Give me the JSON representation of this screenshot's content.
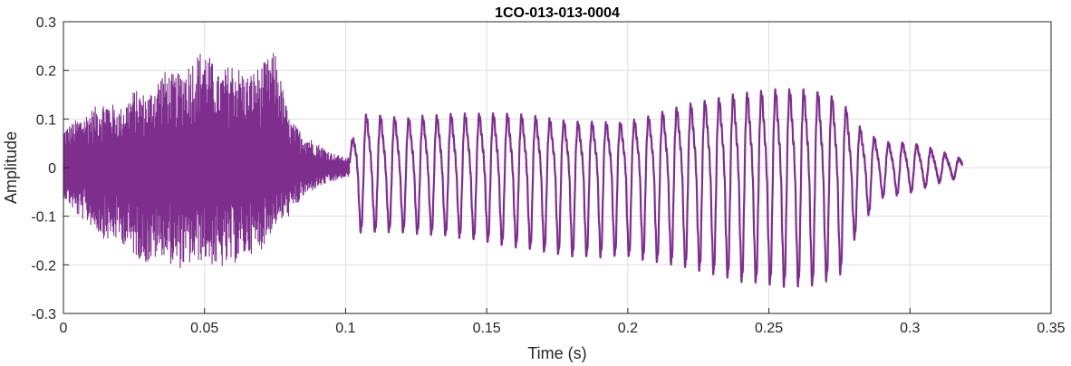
{
  "chart_data": {
    "type": "line",
    "title": "1CO-013-013-0004",
    "xlabel": "Time (s)",
    "ylabel": "Amplitude",
    "xlim": [
      0,
      0.35
    ],
    "ylim": [
      -0.3,
      0.3
    ],
    "x_ticks": [
      0,
      0.05,
      0.1,
      0.15,
      0.2,
      0.25,
      0.3,
      0.35
    ],
    "y_ticks": [
      -0.3,
      -0.2,
      -0.1,
      0,
      0.1,
      0.2,
      0.3
    ],
    "x_tick_labels": [
      "0",
      "0.05",
      "0.1",
      "0.15",
      "0.2",
      "0.25",
      "0.3",
      "0.35"
    ],
    "y_tick_labels": [
      "-0.3",
      "-0.2",
      "-0.1",
      "0",
      "0.1",
      "0.2",
      "0.3"
    ],
    "grid": true,
    "box": true,
    "colors": {
      "signal": "#7e2f8e",
      "grid": "#dfdfdf",
      "axes": "#262626",
      "background": "#ffffff"
    },
    "series": [
      {
        "signal_envelope": [
          {
            "t": 0.0,
            "max": 0.08,
            "min": -0.06
          },
          {
            "t": 0.005,
            "max": 0.1,
            "min": -0.1
          },
          {
            "t": 0.01,
            "max": 0.12,
            "min": -0.12
          },
          {
            "t": 0.015,
            "max": 0.14,
            "min": -0.15
          },
          {
            "t": 0.02,
            "max": 0.12,
            "min": -0.15
          },
          {
            "t": 0.025,
            "max": 0.16,
            "min": -0.18
          },
          {
            "t": 0.03,
            "max": 0.15,
            "min": -0.2
          },
          {
            "t": 0.035,
            "max": 0.2,
            "min": -0.18
          },
          {
            "t": 0.04,
            "max": 0.19,
            "min": -0.21
          },
          {
            "t": 0.045,
            "max": 0.22,
            "min": -0.2
          },
          {
            "t": 0.05,
            "max": 0.25,
            "min": -0.19
          },
          {
            "t": 0.055,
            "max": 0.19,
            "min": -0.21
          },
          {
            "t": 0.06,
            "max": 0.22,
            "min": -0.2
          },
          {
            "t": 0.065,
            "max": 0.19,
            "min": -0.18
          },
          {
            "t": 0.07,
            "max": 0.21,
            "min": -0.17
          },
          {
            "t": 0.075,
            "max": 0.24,
            "min": -0.12
          },
          {
            "t": 0.08,
            "max": 0.1,
            "min": -0.1
          },
          {
            "t": 0.085,
            "max": 0.07,
            "min": -0.06
          },
          {
            "t": 0.09,
            "max": 0.05,
            "min": -0.04
          },
          {
            "t": 0.095,
            "max": 0.03,
            "min": -0.03
          },
          {
            "t": 0.1,
            "max": 0.02,
            "min": -0.02
          }
        ],
        "periodic_segments": [
          {
            "t": 0.102,
            "max": 0.06,
            "min": -0.07
          },
          {
            "t": 0.105,
            "max": 0.13,
            "min": -0.13
          },
          {
            "t": 0.12,
            "max": 0.12,
            "min": -0.13
          },
          {
            "t": 0.14,
            "max": 0.13,
            "min": -0.14
          },
          {
            "t": 0.16,
            "max": 0.13,
            "min": -0.16
          },
          {
            "t": 0.18,
            "max": 0.11,
            "min": -0.18
          },
          {
            "t": 0.2,
            "max": 0.11,
            "min": -0.18
          },
          {
            "t": 0.22,
            "max": 0.15,
            "min": -0.2
          },
          {
            "t": 0.24,
            "max": 0.18,
            "min": -0.23
          },
          {
            "t": 0.255,
            "max": 0.19,
            "min": -0.24
          },
          {
            "t": 0.265,
            "max": 0.19,
            "min": -0.24
          },
          {
            "t": 0.275,
            "max": 0.17,
            "min": -0.22
          },
          {
            "t": 0.282,
            "max": 0.1,
            "min": -0.12
          },
          {
            "t": 0.29,
            "max": 0.06,
            "min": -0.06
          },
          {
            "t": 0.3,
            "max": 0.06,
            "min": -0.05
          },
          {
            "t": 0.31,
            "max": 0.04,
            "min": -0.03
          },
          {
            "t": 0.318,
            "max": 0.02,
            "min": -0.02
          }
        ],
        "pitch_period_s": 0.005
      }
    ]
  }
}
